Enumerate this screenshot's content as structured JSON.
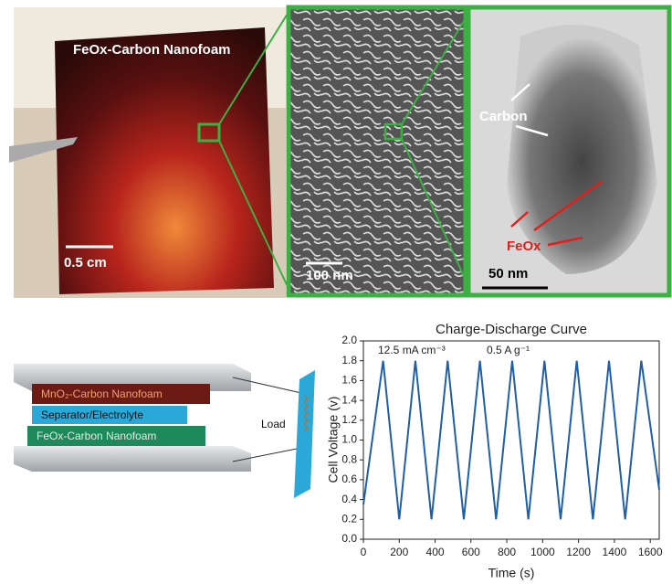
{
  "figure": {
    "photo_label": "FeOx-Carbon Nanofoam",
    "photo_scale": "0.5 cm",
    "sem_scale": "100 nm",
    "tem_carbon": "Carbon",
    "tem_feox": "FeOx",
    "tem_scale": "50 nm",
    "layer_top": "MnO₂-Carbon Nanofoam",
    "layer_mid": "Separator/Electrolyte",
    "layer_bottom": "FeOx-Carbon Nanofoam",
    "load": "Load"
  },
  "chart_data": {
    "type": "line",
    "title": "Charge-Discharge Curve",
    "xlabel": "Time (s)",
    "ylabel": "Cell Voltage (v)",
    "annotations": [
      "12.5 mA cm⁻³",
      "0.5 A g⁻¹"
    ],
    "x": [
      0,
      110,
      200,
      290,
      380,
      470,
      560,
      650,
      740,
      830,
      920,
      1010,
      1100,
      1190,
      1280,
      1370,
      1460,
      1550,
      1650
    ],
    "series": [
      {
        "name": "Cell Voltage",
        "color": "#1f5fa8",
        "values": [
          0.35,
          1.8,
          0.2,
          1.8,
          0.2,
          1.8,
          0.2,
          1.8,
          0.2,
          1.8,
          0.2,
          1.8,
          0.2,
          1.8,
          0.2,
          1.8,
          0.2,
          1.8,
          0.5
        ]
      }
    ],
    "xlim": [
      0,
      1650
    ],
    "ylim": [
      0,
      2.0
    ],
    "xticks": [
      0,
      200,
      400,
      600,
      800,
      1000,
      1200,
      1400,
      1600
    ],
    "yticks": [
      {
        "value": 0,
        "label": "0.0"
      },
      0.2,
      0.4,
      0.6,
      0.8,
      {
        "value": 1,
        "label": "1.0"
      },
      1.2,
      1.4,
      1.6,
      1.8,
      {
        "value": 2,
        "label": "2.0"
      }
    ]
  }
}
